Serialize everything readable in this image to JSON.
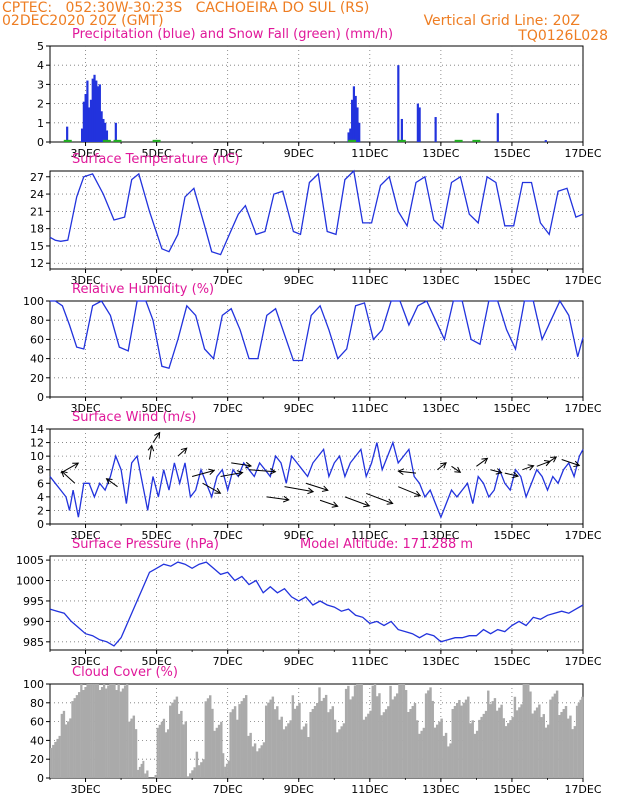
{
  "header": {
    "line1_left": "CPTEC:   052:30W-30:23S   CACHOEIRA DO SUL (RS)",
    "line2_left": "02DEC2020 20Z (GMT)",
    "line2_right": "Vertical Grid Line: 20Z",
    "line3_right": "TQ0126L028",
    "color": "#ee7d22"
  },
  "colors": {
    "title": "#e0189a",
    "line": "#2233dd",
    "snow": "#22aa22",
    "cloud": "#aaaaaa",
    "grid": "#777777"
  },
  "x_axis": {
    "ticks": [
      {
        "label": "3DEC",
        "pos": 1.0
      },
      {
        "label": "5DEC",
        "pos": 3.0
      },
      {
        "label": "7DEC",
        "pos": 5.0
      },
      {
        "label": "9DEC",
        "pos": 7.0
      },
      {
        "label": "11DEC",
        "pos": 9.0
      },
      {
        "label": "13DEC",
        "pos": 11.0
      },
      {
        "label": "15DEC",
        "pos": 13.0
      },
      {
        "label": "17DEC",
        "pos": 15.0
      }
    ],
    "domain": [
      0.0,
      15.0
    ]
  },
  "chart_data": [
    {
      "type": "bar",
      "title": "Precipitation (blue) and Snow Fall (green) (mm/h)",
      "ylim": [
        0,
        5
      ],
      "yticks": [
        0,
        1,
        2,
        3,
        4,
        5
      ],
      "series": [
        {
          "name": "Precipitation",
          "x": [
            0.48,
            0.9,
            0.95,
            1.0,
            1.05,
            1.1,
            1.15,
            1.2,
            1.25,
            1.3,
            1.35,
            1.4,
            1.45,
            1.5,
            1.55,
            1.6,
            1.85,
            8.4,
            8.45,
            8.5,
            8.55,
            8.6,
            8.65,
            8.7,
            9.8,
            9.9,
            10.35,
            10.4,
            10.85,
            12.6,
            13.95
          ],
          "values": [
            0.8,
            0.7,
            2.1,
            2.5,
            3.2,
            1.8,
            2.2,
            3.3,
            3.5,
            3.2,
            2.9,
            3.0,
            1.6,
            1.2,
            1.0,
            0.6,
            1.0,
            0.5,
            0.7,
            2.2,
            2.9,
            2.4,
            1.8,
            1.0,
            4.0,
            1.2,
            2.0,
            1.8,
            1.3,
            1.5,
            0.1
          ]
        },
        {
          "name": "Snow Fall",
          "x": [
            0.5,
            1.6,
            1.9,
            3.0,
            8.5,
            9.9,
            11.5,
            12.0
          ],
          "values": [
            0.06,
            0.06,
            0.06,
            0.06,
            0.06,
            0.06,
            0.06,
            0.06
          ]
        }
      ]
    },
    {
      "type": "line",
      "title": "Surface Temperature (nC)",
      "ylim": [
        11,
        28
      ],
      "yticks": [
        12,
        15,
        18,
        21,
        24,
        27
      ],
      "x": [
        0.0,
        0.15,
        0.3,
        0.5,
        0.75,
        0.95,
        1.2,
        1.5,
        1.8,
        2.1,
        2.3,
        2.5,
        2.8,
        3.15,
        3.35,
        3.6,
        3.8,
        4.05,
        4.35,
        4.55,
        4.8,
        5.05,
        5.3,
        5.5,
        5.8,
        6.05,
        6.3,
        6.55,
        6.85,
        7.05,
        7.3,
        7.55,
        7.8,
        8.05,
        8.3,
        8.55,
        8.8,
        9.05,
        9.3,
        9.55,
        9.8,
        10.05,
        10.3,
        10.55,
        10.8,
        11.05,
        11.3,
        11.55,
        11.8,
        12.05,
        12.3,
        12.55,
        12.8,
        13.05,
        13.3,
        13.55,
        13.8,
        14.05,
        14.3,
        14.55,
        14.8,
        15.0
      ],
      "series": [
        {
          "name": "",
          "values": [
            16.5,
            16.0,
            15.8,
            16.0,
            23.5,
            27.0,
            27.5,
            24.0,
            19.5,
            20.0,
            26.5,
            27.5,
            21.0,
            14.5,
            14.0,
            17.0,
            23.5,
            25.0,
            18.5,
            14.0,
            13.5,
            17.0,
            20.5,
            22.0,
            17.0,
            17.5,
            24.0,
            24.5,
            17.5,
            17.0,
            26.0,
            27.5,
            17.5,
            17.0,
            26.5,
            28.0,
            19.0,
            19.0,
            25.5,
            27.0,
            21.0,
            18.5,
            26.0,
            27.0,
            19.5,
            18.0,
            26.0,
            27.0,
            20.5,
            19.0,
            27.0,
            26.0,
            18.5,
            18.5,
            26.0,
            26.0,
            19.0,
            17.0,
            24.5,
            25.0,
            20.0,
            20.5
          ]
        }
      ]
    },
    {
      "type": "line",
      "title": "Relative Humidity (%)",
      "ylim": [
        0,
        100
      ],
      "yticks": [
        0,
        20,
        40,
        60,
        80,
        100
      ],
      "x": [
        0.0,
        0.15,
        0.35,
        0.55,
        0.75,
        0.95,
        1.2,
        1.45,
        1.7,
        1.95,
        2.2,
        2.45,
        2.7,
        2.9,
        3.15,
        3.35,
        3.6,
        3.85,
        4.1,
        4.35,
        4.6,
        4.85,
        5.1,
        5.35,
        5.6,
        5.85,
        6.1,
        6.35,
        6.6,
        6.85,
        7.1,
        7.35,
        7.6,
        7.85,
        8.1,
        8.35,
        8.6,
        8.85,
        9.1,
        9.35,
        9.6,
        9.85,
        10.1,
        10.35,
        10.6,
        10.85,
        11.1,
        11.35,
        11.6,
        11.85,
        12.1,
        12.35,
        12.6,
        12.85,
        13.1,
        13.35,
        13.6,
        13.85,
        14.1,
        14.35,
        14.6,
        14.85,
        15.0
      ],
      "series": [
        {
          "name": "",
          "values": [
            100,
            100,
            95,
            75,
            52,
            50,
            95,
            100,
            85,
            52,
            48,
            100,
            100,
            80,
            32,
            30,
            60,
            95,
            85,
            50,
            40,
            85,
            92,
            70,
            40,
            40,
            85,
            92,
            65,
            38,
            38,
            85,
            95,
            70,
            40,
            50,
            95,
            98,
            60,
            70,
            100,
            100,
            75,
            95,
            100,
            80,
            60,
            100,
            100,
            60,
            55,
            100,
            100,
            70,
            50,
            100,
            100,
            60,
            80,
            100,
            85,
            42,
            62
          ]
        }
      ]
    },
    {
      "type": "line",
      "title": "Surface Wind (m/s)",
      "ylim": [
        0,
        14
      ],
      "yticks": [
        0,
        2,
        4,
        6,
        8,
        10,
        12,
        14
      ],
      "x": [
        0.0,
        0.15,
        0.3,
        0.45,
        0.55,
        0.65,
        0.8,
        0.95,
        1.1,
        1.25,
        1.4,
        1.55,
        1.7,
        1.85,
        2.0,
        2.15,
        2.3,
        2.45,
        2.6,
        2.75,
        2.9,
        3.05,
        3.2,
        3.35,
        3.5,
        3.65,
        3.8,
        3.95,
        4.1,
        4.25,
        4.4,
        4.55,
        4.7,
        4.85,
        5.0,
        5.15,
        5.3,
        5.45,
        5.6,
        5.75,
        5.9,
        6.05,
        6.2,
        6.35,
        6.5,
        6.65,
        6.8,
        6.95,
        7.1,
        7.25,
        7.4,
        7.55,
        7.7,
        7.85,
        8.0,
        8.15,
        8.3,
        8.45,
        8.6,
        8.75,
        8.9,
        9.05,
        9.2,
        9.35,
        9.5,
        9.65,
        9.8,
        9.95,
        10.1,
        10.25,
        10.4,
        10.55,
        10.7,
        10.85,
        11.0,
        11.15,
        11.3,
        11.45,
        11.6,
        11.75,
        11.9,
        12.05,
        12.2,
        12.35,
        12.5,
        12.65,
        12.8,
        12.95,
        13.1,
        13.25,
        13.4,
        13.55,
        13.7,
        13.85,
        14.0,
        14.15,
        14.3,
        14.45,
        14.6,
        14.75,
        14.9,
        15.0
      ],
      "series": [
        {
          "name": "",
          "values": [
            7,
            6,
            5,
            4,
            2,
            5,
            1,
            6,
            6,
            4,
            6,
            5,
            7,
            10,
            8,
            3,
            9,
            10,
            6,
            2,
            7,
            4,
            8,
            5,
            9,
            6,
            9,
            4,
            5,
            8,
            6,
            4,
            7,
            8,
            5,
            8,
            7,
            9,
            8,
            7,
            9,
            8,
            7,
            10,
            9,
            6,
            10,
            9,
            8,
            7,
            9,
            10,
            11,
            7,
            9,
            10,
            7,
            9,
            10,
            11,
            7,
            9,
            12,
            8,
            10,
            12,
            9,
            10,
            11,
            7,
            6,
            4,
            5,
            3,
            1,
            3,
            5,
            4,
            5,
            6,
            3,
            7,
            6,
            4,
            5,
            8,
            6,
            5,
            8,
            7,
            4,
            6,
            8,
            7,
            5,
            7,
            6,
            8,
            9,
            7,
            10,
            11
          ]
        }
      ]
    },
    {
      "type": "line",
      "title": "Surface Pressure (hPa)",
      "annotation": "Model Altitude: 171.288 m",
      "ylim": [
        983,
        1006
      ],
      "yticks": [
        985,
        990,
        995,
        1000,
        1005
      ],
      "x": [
        0.0,
        0.2,
        0.4,
        0.6,
        0.8,
        1.0,
        1.2,
        1.4,
        1.6,
        1.8,
        2.0,
        2.2,
        2.4,
        2.6,
        2.8,
        3.0,
        3.2,
        3.4,
        3.6,
        3.8,
        4.0,
        4.2,
        4.4,
        4.6,
        4.8,
        5.0,
        5.2,
        5.4,
        5.6,
        5.8,
        6.0,
        6.2,
        6.4,
        6.6,
        6.8,
        7.0,
        7.2,
        7.4,
        7.6,
        7.8,
        8.0,
        8.2,
        8.4,
        8.6,
        8.8,
        9.0,
        9.2,
        9.4,
        9.6,
        9.8,
        10.0,
        10.2,
        10.4,
        10.6,
        10.8,
        11.0,
        11.2,
        11.4,
        11.6,
        11.8,
        12.0,
        12.2,
        12.4,
        12.6,
        12.8,
        13.0,
        13.2,
        13.4,
        13.6,
        13.8,
        14.0,
        14.2,
        14.4,
        14.6,
        14.8,
        15.0
      ],
      "series": [
        {
          "name": "",
          "values": [
            993,
            992.5,
            992,
            990,
            988.5,
            987,
            986.5,
            985.5,
            985,
            984,
            986,
            990,
            994,
            998,
            1002,
            1003,
            1004,
            1003.5,
            1004.5,
            1004,
            1003,
            1004,
            1004.5,
            1003,
            1001.5,
            1002,
            1000,
            1001,
            999,
            1000,
            997,
            998.5,
            997,
            998,
            996,
            995,
            996,
            994,
            995,
            994,
            993.5,
            992.5,
            993,
            991.5,
            991,
            989.5,
            990,
            989,
            990,
            988,
            987.5,
            987,
            986,
            987,
            986.5,
            985,
            985.5,
            986,
            986,
            986.5,
            986.5,
            988,
            987,
            988,
            987.5,
            989,
            990,
            989,
            991,
            990.5,
            991.5,
            992,
            992.5,
            992,
            993,
            994
          ]
        }
      ]
    },
    {
      "type": "bar",
      "title": "Cloud Cover (%)",
      "ylim": [
        0,
        100
      ],
      "yticks": [
        0,
        20,
        40,
        60,
        80,
        100
      ],
      "series": [
        {
          "name": "",
          "bins": [
            [
              0.0,
              0.3,
              40
            ],
            [
              0.3,
              0.6,
              65
            ],
            [
              0.6,
              0.85,
              85
            ],
            [
              0.85,
              1.2,
              100
            ],
            [
              1.2,
              1.55,
              100
            ],
            [
              1.55,
              1.9,
              100
            ],
            [
              1.9,
              2.2,
              100
            ],
            [
              2.2,
              2.45,
              60
            ],
            [
              2.45,
              2.65,
              15
            ],
            [
              2.65,
              3.0,
              0
            ],
            [
              3.0,
              3.35,
              55
            ],
            [
              3.35,
              3.6,
              85
            ],
            [
              3.6,
              3.85,
              65
            ],
            [
              3.85,
              4.1,
              5
            ],
            [
              4.1,
              4.35,
              20
            ],
            [
              4.35,
              4.6,
              80
            ],
            [
              4.6,
              4.85,
              55
            ],
            [
              4.85,
              5.05,
              20
            ],
            [
              5.05,
              5.3,
              70
            ],
            [
              5.3,
              5.55,
              85
            ],
            [
              5.55,
              5.8,
              40
            ],
            [
              5.8,
              6.05,
              30
            ],
            [
              6.05,
              6.3,
              85
            ],
            [
              6.3,
              6.55,
              70
            ],
            [
              6.55,
              6.8,
              55
            ],
            [
              6.8,
              7.05,
              80
            ],
            [
              7.05,
              7.3,
              50
            ],
            [
              7.3,
              7.55,
              75
            ],
            [
              7.55,
              7.8,
              90
            ],
            [
              7.8,
              8.05,
              70
            ],
            [
              8.05,
              8.3,
              55
            ],
            [
              8.3,
              8.55,
              90
            ],
            [
              8.55,
              8.8,
              100
            ],
            [
              8.8,
              9.05,
              70
            ],
            [
              9.05,
              9.3,
              95
            ],
            [
              9.3,
              9.55,
              70
            ],
            [
              9.55,
              9.8,
              90
            ],
            [
              9.8,
              10.05,
              100
            ],
            [
              10.05,
              10.3,
              75
            ],
            [
              10.3,
              10.55,
              55
            ],
            [
              10.55,
              10.8,
              90
            ],
            [
              10.8,
              11.05,
              60
            ],
            [
              11.05,
              11.3,
              40
            ],
            [
              11.3,
              11.55,
              75
            ],
            [
              11.55,
              11.8,
              85
            ],
            [
              11.8,
              12.05,
              55
            ],
            [
              12.05,
              12.3,
              65
            ],
            [
              12.3,
              12.55,
              85
            ],
            [
              12.55,
              12.8,
              70
            ],
            [
              12.8,
              13.05,
              60
            ],
            [
              13.05,
              13.3,
              80
            ],
            [
              13.3,
              13.55,
              100
            ],
            [
              13.55,
              13.8,
              75
            ],
            [
              13.8,
              14.05,
              60
            ],
            [
              14.05,
              14.3,
              85
            ],
            [
              14.3,
              14.55,
              75
            ],
            [
              14.55,
              14.8,
              60
            ],
            [
              14.8,
              15.0,
              80
            ]
          ]
        }
      ]
    }
  ]
}
